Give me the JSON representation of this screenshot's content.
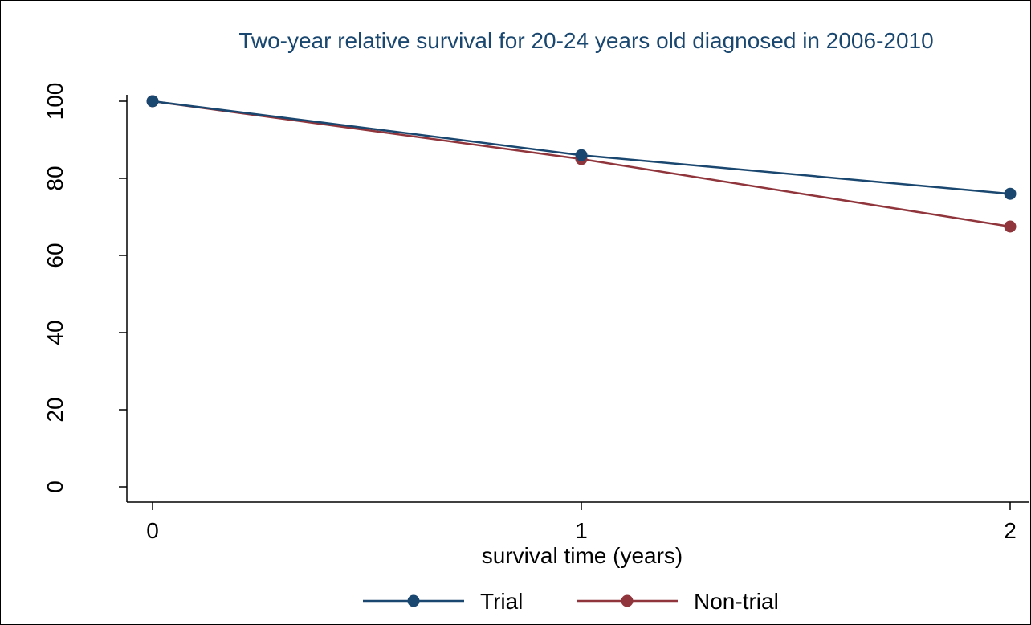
{
  "chart_data": {
    "type": "line",
    "title": "Two-year relative survival for 20-24 years old diagnosed in 2006-2010",
    "xlabel": "survival time (years)",
    "ylabel": "",
    "x": [
      0,
      1,
      2
    ],
    "xticks": [
      "0",
      "1",
      "2"
    ],
    "yticks": [
      "0",
      "20",
      "40",
      "60",
      "80",
      "100"
    ],
    "xlim": [
      0,
      2
    ],
    "ylim": [
      0,
      100
    ],
    "grid": false,
    "legend_position": "bottom",
    "series": [
      {
        "name": "Trial",
        "values": [
          100,
          86,
          76
        ],
        "color": "#1a476f"
      },
      {
        "name": "Non-trial",
        "values": [
          100,
          85,
          67.5
        ],
        "color": "#90353b"
      }
    ]
  }
}
